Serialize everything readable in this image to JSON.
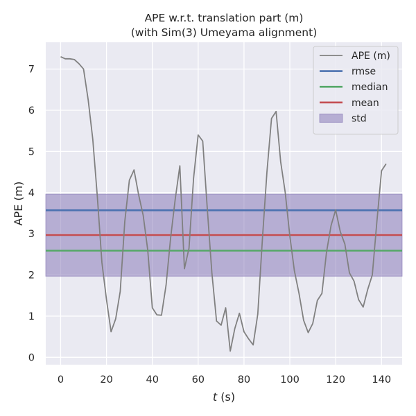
{
  "chart_data": {
    "type": "line",
    "title_line1": "APE w.r.t. translation part (m)",
    "title_line2": "(with Sim(3) Umeyama alignment)",
    "xlabel_italic": "t",
    "xlabel_rest": " (s)",
    "ylabel": "APE (m)",
    "xlim": [
      -6.5,
      149
    ],
    "ylim": [
      -0.18,
      7.65
    ],
    "xticks": [
      0,
      20,
      40,
      60,
      80,
      100,
      120,
      140
    ],
    "yticks": [
      0,
      1,
      2,
      3,
      4,
      5,
      6,
      7
    ],
    "grid": true,
    "legend_position": "top-right",
    "series": [
      {
        "name": "APE (m)",
        "color": "#808080",
        "x": [
          0,
          2,
          4,
          6,
          8,
          10,
          12,
          14,
          16,
          18,
          20,
          22,
          24,
          26,
          28,
          30,
          32,
          34,
          36,
          38,
          40,
          42,
          44,
          46,
          48,
          50,
          52,
          54,
          56,
          58,
          60,
          62,
          64,
          66,
          68,
          70,
          72,
          74,
          76,
          78,
          80,
          82,
          84,
          86,
          88,
          90,
          92,
          94,
          96,
          98,
          100,
          102,
          104,
          106,
          108,
          110,
          112,
          114,
          116,
          118,
          120,
          122,
          124,
          126,
          128,
          130,
          132,
          134,
          136,
          138,
          140,
          142
        ],
        "y": [
          7.3,
          7.25,
          7.25,
          7.23,
          7.13,
          7.0,
          6.25,
          5.3,
          3.9,
          2.3,
          1.4,
          0.62,
          0.93,
          1.6,
          3.3,
          4.3,
          4.55,
          3.95,
          3.45,
          2.6,
          1.2,
          1.03,
          1.02,
          1.75,
          2.9,
          3.85,
          4.65,
          2.15,
          2.65,
          4.35,
          5.4,
          5.25,
          3.6,
          2.05,
          0.88,
          0.78,
          1.2,
          0.15,
          0.7,
          1.07,
          0.62,
          0.45,
          0.3,
          1.05,
          2.85,
          4.5,
          5.8,
          5.97,
          4.75,
          4.0,
          2.95,
          2.1,
          1.55,
          0.9,
          0.6,
          0.82,
          1.38,
          1.55,
          2.55,
          3.2,
          3.58,
          3.05,
          2.75,
          2.05,
          1.85,
          1.4,
          1.22,
          1.65,
          2.0,
          3.3,
          4.53,
          4.7
        ]
      },
      {
        "name": "rmse",
        "color": "#4c72b0",
        "value": 3.57
      },
      {
        "name": "median",
        "color": "#55a868",
        "value": 2.59
      },
      {
        "name": "mean",
        "color": "#c44e52",
        "value": 2.97
      },
      {
        "name": "std",
        "color": "#8172b3",
        "band": [
          1.97,
          3.96
        ]
      }
    ]
  }
}
